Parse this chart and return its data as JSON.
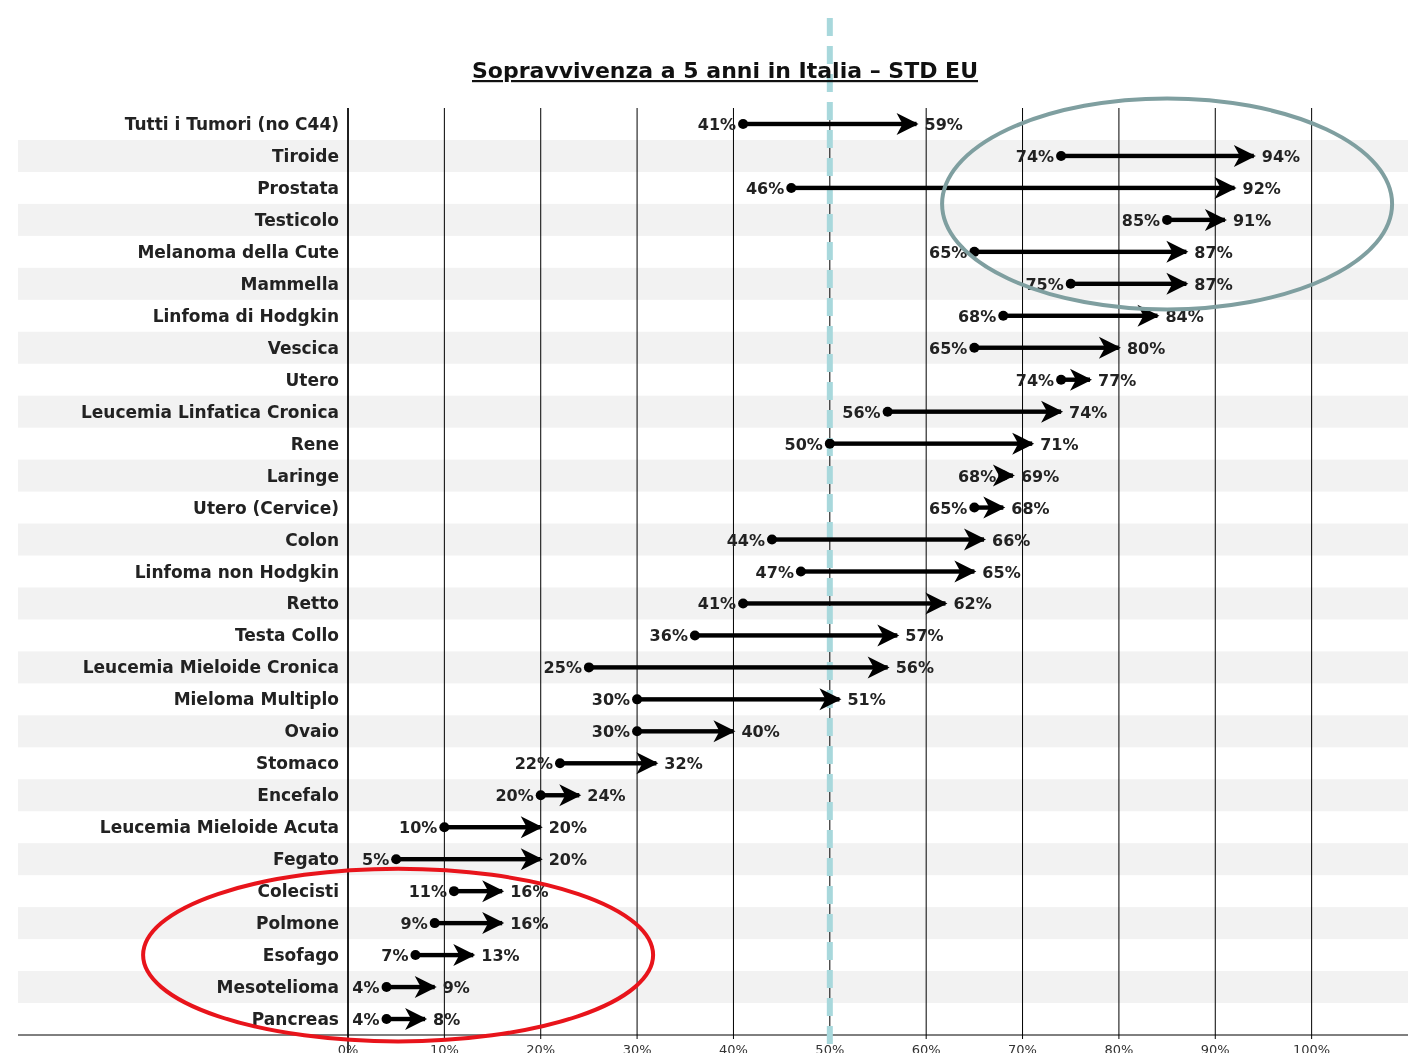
{
  "chart_data": {
    "type": "bar",
    "orientation": "horizontal",
    "title": "Sopravvivenza a 5 anni in Italia – STD EU",
    "categories": [
      "Tutti i Tumori (no C44)",
      "Tiroide",
      "Prostata",
      "Testicolo",
      "Melanoma della Cute",
      "Mammella",
      "Linfoma di Hodgkin",
      "Vescica",
      "Utero",
      "Leucemia Linfatica Cronica",
      "Rene",
      "Laringe",
      "Utero (Cervice)",
      "Colon",
      "Linfoma non Hodgkin",
      "Retto",
      "Testa Collo",
      "Leucemia Mieloide Cronica",
      "Mieloma Multiplo",
      "Ovaio",
      "Stomaco",
      "Encefalo",
      "Leucemia Mieloide Acuta",
      "Fegato",
      "Colecisti",
      "Polmone",
      "Esofago",
      "Mesotelioma",
      "Pancreas"
    ],
    "base": [
      41,
      74,
      46,
      85,
      65,
      75,
      68,
      65,
      74,
      56,
      50,
      68,
      65,
      44,
      47,
      41,
      36,
      25,
      30,
      30,
      22,
      20,
      10,
      5,
      11,
      9,
      7,
      4,
      4
    ],
    "values": [
      18,
      20,
      46,
      6,
      22,
      12,
      16,
      15,
      3,
      18,
      21,
      1,
      3,
      22,
      18,
      21,
      21,
      31,
      21,
      10,
      10,
      4,
      10,
      15,
      5,
      7,
      6,
      5,
      4
    ],
    "color": "#000000",
    "marker": "circle",
    "xlim": [
      0,
      110
    ],
    "xticks": [
      {
        "value": 0,
        "label": "0%"
      },
      {
        "value": 10,
        "label": "10%"
      },
      {
        "value": 20,
        "label": "20%"
      },
      {
        "value": 30,
        "label": "30%"
      },
      {
        "value": 40,
        "label": "40%"
      },
      {
        "value": 50,
        "label": "50%"
      },
      {
        "value": 60,
        "label": "60%"
      },
      {
        "value": 70,
        "label": "70%"
      },
      {
        "value": 80,
        "label": "80%"
      },
      {
        "value": 90,
        "label": "90%"
      },
      {
        "value": 100,
        "label": "100%"
      }
    ],
    "grid": "x",
    "ref_lines": [
      {
        "axis": "x",
        "value": 50,
        "color": "#a8d8dc",
        "line_style": "dashed"
      }
    ],
    "annotations": [
      {
        "text": "41%",
        "x": 41,
        "y": "Tutti i Tumori (no C44)"
      },
      {
        "text": "59%",
        "x": 59,
        "y": "Tutti i Tumori (no C44)"
      },
      {
        "text": "74%",
        "x": 74,
        "y": "Tiroide"
      },
      {
        "text": "94%",
        "x": 94,
        "y": "Tiroide"
      },
      {
        "text": "46%",
        "x": 46,
        "y": "Prostata"
      },
      {
        "text": "92%",
        "x": 92,
        "y": "Prostata"
      },
      {
        "text": "85%",
        "x": 85,
        "y": "Testicolo"
      },
      {
        "text": "91%",
        "x": 91,
        "y": "Testicolo"
      },
      {
        "text": "65%",
        "x": 65,
        "y": "Melanoma della Cute"
      },
      {
        "text": "87%",
        "x": 87,
        "y": "Melanoma della Cute"
      },
      {
        "text": "75%",
        "x": 75,
        "y": "Mammella"
      },
      {
        "text": "87%",
        "x": 87,
        "y": "Mammella"
      },
      {
        "text": "68%",
        "x": 68,
        "y": "Linfoma di Hodgkin"
      },
      {
        "text": "84%",
        "x": 84,
        "y": "Linfoma di Hodgkin"
      },
      {
        "text": "65%",
        "x": 65,
        "y": "Vescica"
      },
      {
        "text": "80%",
        "x": 80,
        "y": "Vescica"
      },
      {
        "text": "74%",
        "x": 74,
        "y": "Utero"
      },
      {
        "text": "77%",
        "x": 77,
        "y": "Utero"
      },
      {
        "text": "56%",
        "x": 56,
        "y": "Leucemia Linfatica Cronica"
      },
      {
        "text": "74%",
        "x": 74,
        "y": "Leucemia Linfatica Cronica"
      },
      {
        "text": "50%",
        "x": 50,
        "y": "Rene"
      },
      {
        "text": "71%",
        "x": 71,
        "y": "Rene"
      },
      {
        "text": "68%",
        "x": 68,
        "y": "Laringe"
      },
      {
        "text": "69%",
        "x": 69,
        "y": "Laringe"
      },
      {
        "text": "65%",
        "x": 65,
        "y": "Utero (Cervice)"
      },
      {
        "text": "68%",
        "x": 68,
        "y": "Utero (Cervice)"
      },
      {
        "text": "44%",
        "x": 44,
        "y": "Colon"
      },
      {
        "text": "66%",
        "x": 66,
        "y": "Colon"
      },
      {
        "text": "47%",
        "x": 47,
        "y": "Linfoma non Hodgkin"
      },
      {
        "text": "65%",
        "x": 65,
        "y": "Linfoma non Hodgkin"
      },
      {
        "text": "41%",
        "x": 41,
        "y": "Retto"
      },
      {
        "text": "62%",
        "x": 62,
        "y": "Retto"
      },
      {
        "text": "36%",
        "x": 36,
        "y": "Testa Collo"
      },
      {
        "text": "57%",
        "x": 57,
        "y": "Testa Collo"
      },
      {
        "text": "25%",
        "x": 25,
        "y": "Leucemia Mieloide Cronica"
      },
      {
        "text": "56%",
        "x": 56,
        "y": "Leucemia Mieloide Cronica"
      },
      {
        "text": "30%",
        "x": 30,
        "y": "Mieloma Multiplo"
      },
      {
        "text": "51%",
        "x": 51,
        "y": "Mieloma Multiplo"
      },
      {
        "text": "30%",
        "x": 30,
        "y": "Ovaio"
      },
      {
        "text": "40%",
        "x": 40,
        "y": "Ovaio"
      },
      {
        "text": "22%",
        "x": 22,
        "y": "Stomaco"
      },
      {
        "text": "32%",
        "x": 32,
        "y": "Stomaco"
      },
      {
        "text": "20%",
        "x": 20,
        "y": "Encefalo"
      },
      {
        "text": "24%",
        "x": 24,
        "y": "Encefalo"
      },
      {
        "text": "10%",
        "x": 10,
        "y": "Leucemia Mieloide Acuta"
      },
      {
        "text": "20%",
        "x": 20,
        "y": "Leucemia Mieloide Acuta"
      },
      {
        "text": "5%",
        "x": 5,
        "y": "Fegato"
      },
      {
        "text": "20%",
        "x": 20,
        "y": "Fegato"
      },
      {
        "text": "11%",
        "x": 11,
        "y": "Colecisti"
      },
      {
        "text": "16%",
        "x": 16,
        "y": "Colecisti"
      },
      {
        "text": "9%",
        "x": 9,
        "y": "Polmone"
      },
      {
        "text": "16%",
        "x": 16,
        "y": "Polmone"
      },
      {
        "text": "7%",
        "x": 7,
        "y": "Esofago"
      },
      {
        "text": "13%",
        "x": 13,
        "y": "Esofago"
      },
      {
        "text": "4%",
        "x": 4,
        "y": "Mesotelioma"
      },
      {
        "text": "9%",
        "x": 9,
        "y": "Mesotelioma"
      },
      {
        "text": "4%",
        "x": 4,
        "y": "Pancreas"
      },
      {
        "text": "8%",
        "x": 8,
        "y": "Pancreas"
      }
    ]
  }
}
